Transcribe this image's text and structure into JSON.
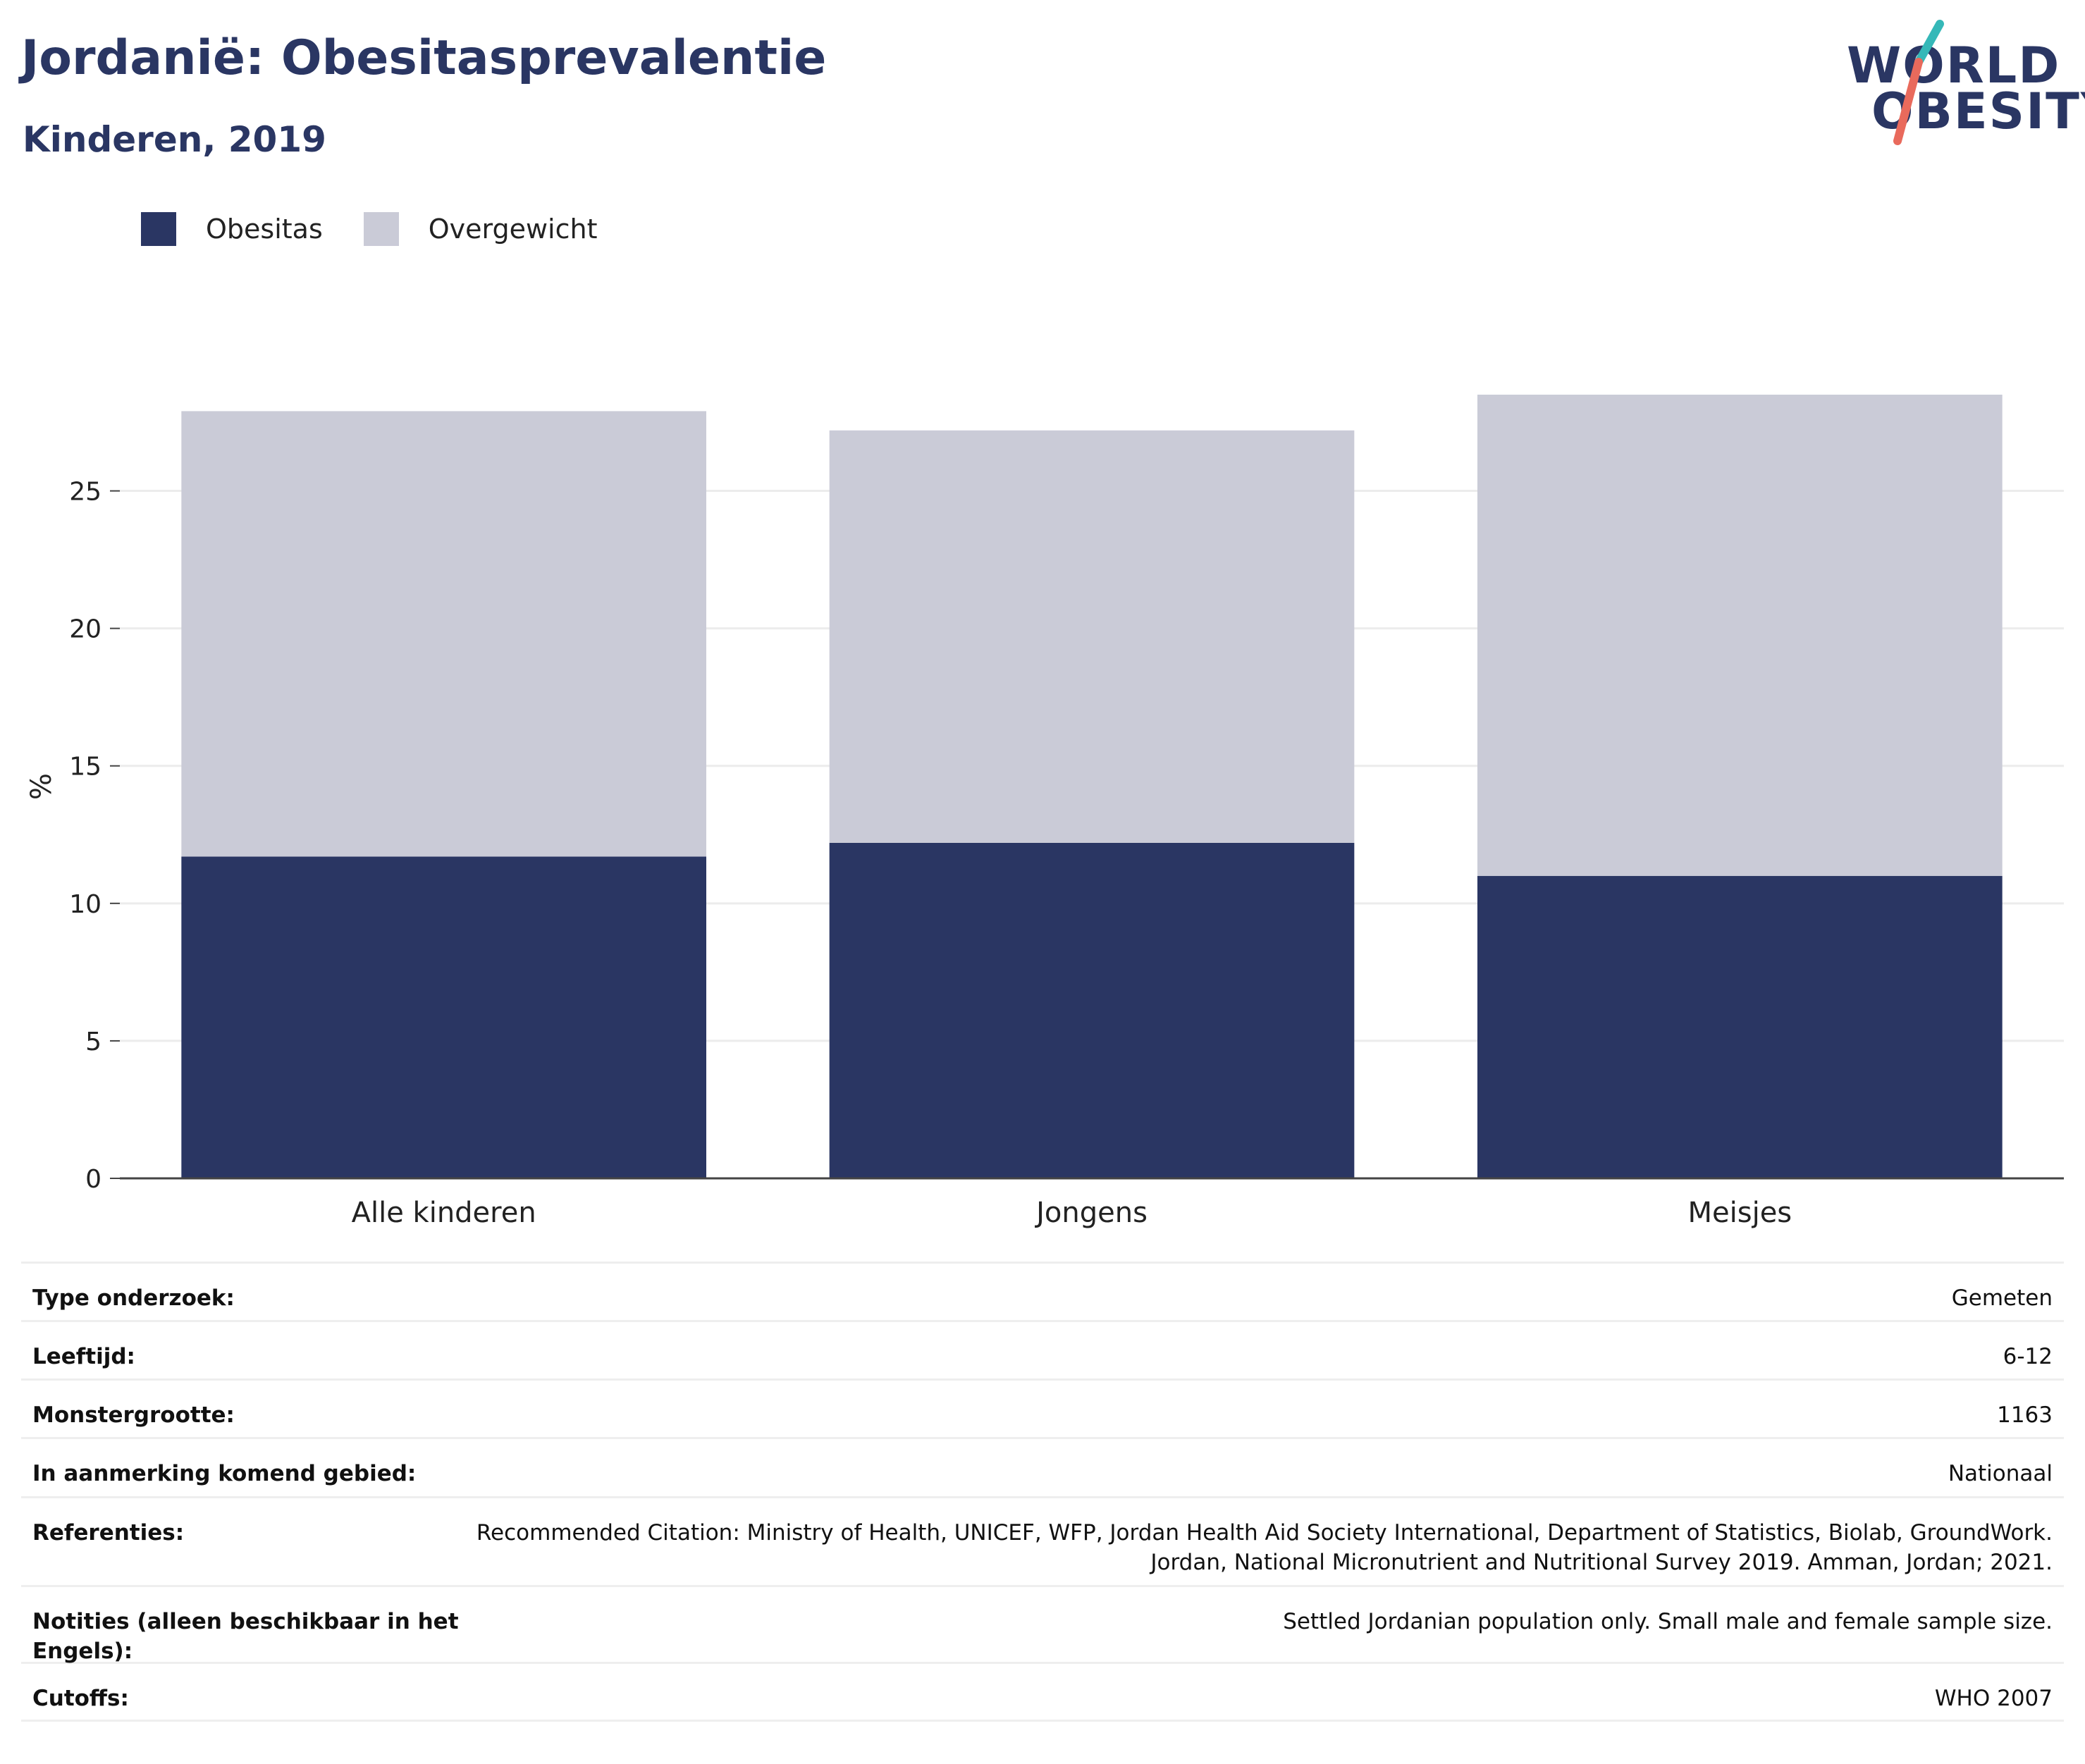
{
  "header": {
    "title": "Jordanië: Obesitasprevalentie",
    "subtitle": "Kinderen, 2019"
  },
  "logo": {
    "line1": "WORLD",
    "line2": "OBESITY",
    "accent_teal": "#35b8b8",
    "accent_coral": "#e96a5c"
  },
  "legend": [
    {
      "label": "Obesitas",
      "color": "#2a3663"
    },
    {
      "label": "Overgewicht",
      "color": "#cacbd7"
    }
  ],
  "chart_data": {
    "type": "bar",
    "stacked": true,
    "categories": [
      "Alle kinderen",
      "Jongens",
      "Meisjes"
    ],
    "series": [
      {
        "name": "Obesitas",
        "values": [
          11.7,
          12.2,
          11.0
        ],
        "color": "#2a3663"
      },
      {
        "name": "Overgewicht",
        "values": [
          16.2,
          15.0,
          17.5
        ],
        "color": "#cacbd7"
      }
    ],
    "ylabel": "%",
    "xlabel": "",
    "ylim": [
      0,
      28.5
    ],
    "yticks": [
      0,
      5,
      10,
      15,
      20,
      25
    ],
    "grid": true,
    "legend_position": "top-left"
  },
  "info": [
    {
      "key": "Type onderzoek:",
      "value": "Gemeten"
    },
    {
      "key": "Leeftijd:",
      "value": "6-12"
    },
    {
      "key": "Monstergrootte:",
      "value": "1163"
    },
    {
      "key": "In aanmerking komend gebied:",
      "value": "Nationaal"
    },
    {
      "key": "Referenties:",
      "value": "Recommended Citation: Ministry of Health, UNICEF, WFP, Jordan Health Aid Society International, Department of Statistics, Biolab, GroundWork. Jordan, National Micronutrient and Nutritional Survey 2019. Amman, Jordan; 2021."
    },
    {
      "key": "Notities (alleen beschikbaar in het Engels):",
      "value": "Settled Jordanian population only. Small male and female sample size."
    },
    {
      "key": "Cutoffs:",
      "value": "WHO 2007"
    }
  ]
}
